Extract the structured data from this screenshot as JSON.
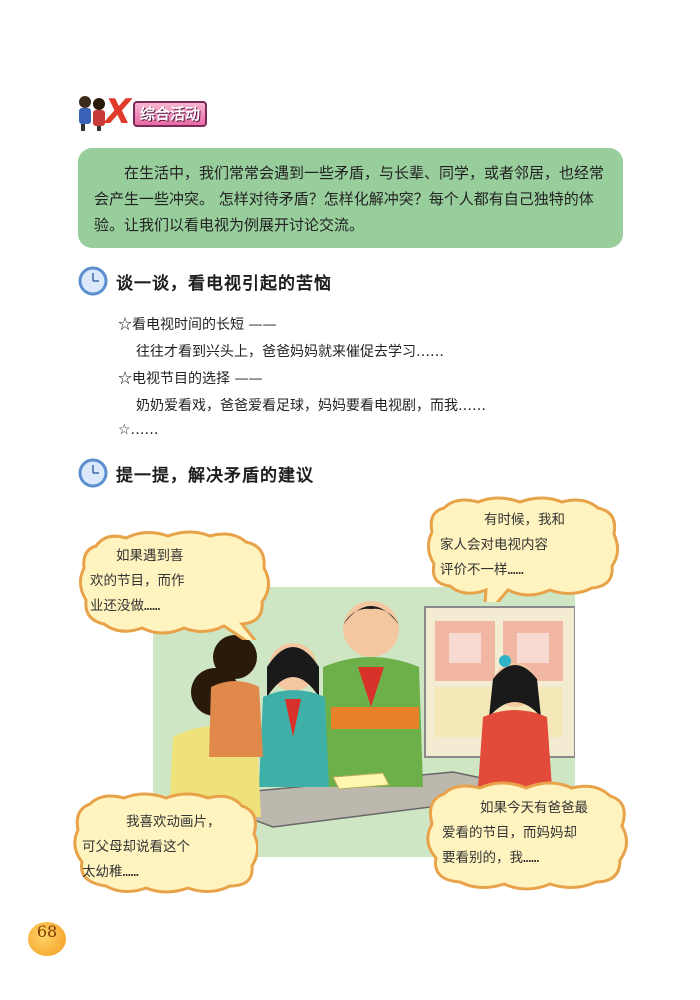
{
  "header": {
    "badge_letter": "X",
    "title": "综合活动"
  },
  "intro": {
    "text": "在生活中，我们常常会遇到一些矛盾，与长辈、同学，或者邻居，也经常会产生一些冲突。 怎样对待矛盾？怎样化解冲突？每个人都有自己独特的体验。让我们以看电视为例展开讨论交流。"
  },
  "section1": {
    "title": "谈一谈，看电视引起的苦恼",
    "items": [
      "☆看电视时间的长短 ——",
      "往往才看到兴头上，爸爸妈妈就来催促去学习……",
      "☆电视节目的选择 ——",
      "奶奶爱看戏，爸爸爱看足球，妈妈要看电视剧，而我……",
      "☆……"
    ]
  },
  "section2": {
    "title": "提一提，解决矛盾的建议"
  },
  "bubbles": {
    "top_left": [
      "如果遇到喜",
      "欢的节目，而作",
      "业还没做……"
    ],
    "top_right": [
      "有时候，我和",
      "家人会对电视内容",
      "评价不一样……"
    ],
    "bottom_left": [
      "我喜欢动画片，",
      "可父母却说看这个",
      "太幼稚……"
    ],
    "bottom_right": [
      "如果今天有爸爸最",
      "爱看的节目，而妈妈却",
      "要看别的，我……"
    ]
  },
  "page_number": "68",
  "colors": {
    "intro_bg": "#98cd9c",
    "bubble_fill": "#fff4c0",
    "bubble_stroke": "#e8a24a",
    "clock_blue": "#5b8fcf"
  }
}
